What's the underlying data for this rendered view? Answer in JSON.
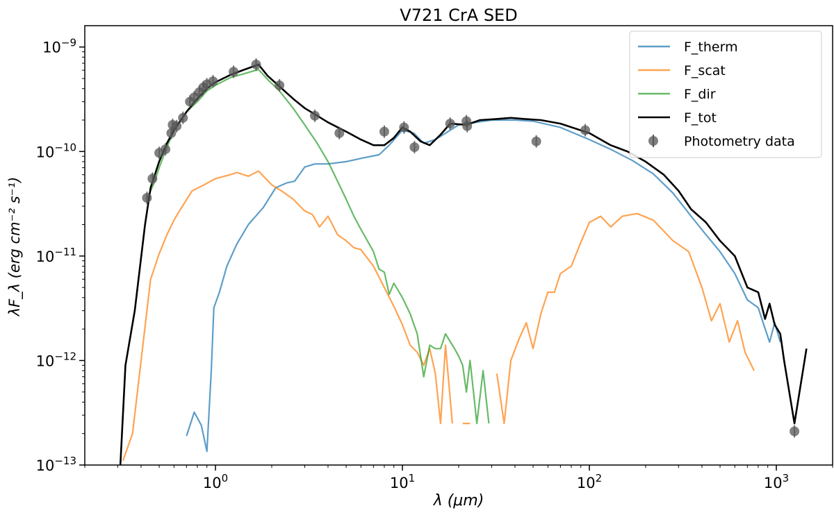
{
  "chart_data": {
    "type": "line",
    "title": "V721 CrA SED",
    "xlabel": "λ (μm)",
    "ylabel": "λF_λ (erg cm⁻² s⁻¹)",
    "xscale": "log",
    "yscale": "log",
    "xlim": [
      0.2,
      2000
    ],
    "ylim": [
      1e-13,
      1.6e-09
    ],
    "grid": false,
    "legend_position": "top-right",
    "x_ticks": [
      {
        "value": 1,
        "base": "10",
        "exp": "0"
      },
      {
        "value": 10,
        "base": "10",
        "exp": "1"
      },
      {
        "value": 100,
        "base": "10",
        "exp": "2"
      },
      {
        "value": 1000,
        "base": "10",
        "exp": "3"
      }
    ],
    "y_ticks": [
      {
        "value": 1e-13,
        "base": "10",
        "exp": "−13"
      },
      {
        "value": 1e-12,
        "base": "10",
        "exp": "−12"
      },
      {
        "value": 1e-11,
        "base": "10",
        "exp": "−11"
      },
      {
        "value": 1e-10,
        "base": "10",
        "exp": "−10"
      },
      {
        "value": 1e-09,
        "base": "10",
        "exp": "−9"
      }
    ],
    "series": [
      {
        "name": "F_therm",
        "color": "#1f77b4",
        "points": [
          [
            0.7,
            1.9e-13
          ],
          [
            0.77,
            3.2e-13
          ],
          [
            0.84,
            2.4e-13
          ],
          [
            0.9,
            1.35e-13
          ],
          [
            0.95,
            8e-13
          ],
          [
            0.98,
            3.2e-12
          ],
          [
            1.05,
            4.5e-12
          ],
          [
            1.15,
            8e-12
          ],
          [
            1.3,
            1.3e-11
          ],
          [
            1.5,
            2e-11
          ],
          [
            1.8,
            2.9e-11
          ],
          [
            2.1,
            4.5e-11
          ],
          [
            2.4,
            5e-11
          ],
          [
            2.65,
            5.2e-11
          ],
          [
            3.0,
            7.1e-11
          ],
          [
            3.4,
            7.6e-11
          ],
          [
            4.0,
            7.6e-11
          ],
          [
            5.0,
            8e-11
          ],
          [
            6.0,
            8.6e-11
          ],
          [
            7.5,
            9.3e-11
          ],
          [
            8.5,
            1.15e-10
          ],
          [
            10.0,
            1.6e-10
          ],
          [
            11.5,
            1.5e-10
          ],
          [
            13.0,
            1.2e-10
          ],
          [
            15.0,
            1.3e-10
          ],
          [
            20.0,
            1.8e-10
          ],
          [
            30.0,
            2e-10
          ],
          [
            40.0,
            2e-10
          ],
          [
            50.0,
            1.95e-10
          ],
          [
            70.0,
            1.7e-10
          ],
          [
            100.0,
            1.3e-10
          ],
          [
            130.0,
            1.05e-10
          ],
          [
            170.0,
            8.2e-11
          ],
          [
            220.0,
            6.1e-11
          ],
          [
            280.0,
            4e-11
          ],
          [
            350.0,
            2.4e-11
          ],
          [
            420.0,
            1.6e-11
          ],
          [
            500.0,
            1.1e-11
          ],
          [
            600.0,
            6.8e-12
          ],
          [
            700.0,
            3.8e-12
          ],
          [
            800.0,
            3.2e-12
          ],
          [
            850.0,
            2.3e-12
          ],
          [
            920.0,
            1.5e-12
          ],
          [
            980.0,
            2.3e-12
          ],
          [
            1050.0,
            1.5e-12
          ]
        ]
      },
      {
        "name": "F_scat",
        "color": "#ff7f0e",
        "segments": [
          [
            [
              0.32,
              1.1e-13
            ],
            [
              0.36,
              2e-13
            ],
            [
              0.4,
              1e-12
            ],
            [
              0.45,
              6e-12
            ],
            [
              0.5,
              1.05e-11
            ],
            [
              0.55,
              1.6e-11
            ],
            [
              0.6,
              2.2e-11
            ],
            [
              0.65,
              2.8e-11
            ],
            [
              0.75,
              4.2e-11
            ],
            [
              0.85,
              4.7e-11
            ],
            [
              1.0,
              5.5e-11
            ],
            [
              1.2,
              6e-11
            ],
            [
              1.3,
              6.3e-11
            ],
            [
              1.5,
              5.8e-11
            ],
            [
              1.7,
              6.5e-11
            ],
            [
              2.0,
              4.8e-11
            ],
            [
              2.3,
              4.1e-11
            ],
            [
              2.6,
              3.5e-11
            ],
            [
              3.0,
              2.7e-11
            ],
            [
              3.3,
              2.5e-11
            ],
            [
              3.6,
              1.9e-11
            ],
            [
              4.0,
              2.4e-11
            ],
            [
              4.5,
              1.6e-11
            ],
            [
              5.0,
              1.4e-11
            ],
            [
              5.5,
              1.2e-11
            ],
            [
              6.0,
              1.15e-11
            ],
            [
              7.0,
              8e-12
            ],
            [
              8.0,
              5e-12
            ],
            [
              9.0,
              3.3e-12
            ],
            [
              10.0,
              2.2e-12
            ],
            [
              11.0,
              1.4e-12
            ],
            [
              12.0,
              1.2e-12
            ],
            [
              13.0,
              9e-13
            ],
            [
              14.0,
              1.3e-12
            ],
            [
              15.0,
              7.5e-13
            ],
            [
              16.0,
              2.5e-13
            ],
            [
              17.0,
              1.4e-12
            ],
            [
              18.5,
              2.5e-13
            ]
          ],
          [
            [
              21.0,
              2.5e-13
            ],
            [
              23.0,
              2.5e-13
            ]
          ],
          [
            [
              32.0,
              7.5e-13
            ],
            [
              35.0,
              2.5e-13
            ],
            [
              38.0,
              1e-12
            ],
            [
              42.0,
              1.6e-12
            ],
            [
              46.0,
              2.3e-12
            ],
            [
              50.0,
              1.3e-12
            ],
            [
              55.0,
              2.8e-12
            ],
            [
              60.0,
              4.5e-12
            ],
            [
              65.0,
              4.5e-12
            ],
            [
              70.0,
              6.8e-12
            ],
            [
              80.0,
              8e-12
            ],
            [
              90.0,
              1.35e-11
            ],
            [
              100.0,
              2.1e-11
            ],
            [
              115.0,
              2.4e-11
            ],
            [
              130.0,
              1.9e-11
            ],
            [
              150.0,
              2.4e-11
            ],
            [
              180.0,
              2.55e-11
            ],
            [
              220.0,
              2.2e-11
            ],
            [
              280.0,
              1.4e-11
            ],
            [
              340.0,
              1.1e-11
            ],
            [
              400.0,
              5e-12
            ],
            [
              450.0,
              2.4e-12
            ],
            [
              500.0,
              3.5e-12
            ],
            [
              560.0,
              1.5e-12
            ],
            [
              620.0,
              2.4e-12
            ],
            [
              680.0,
              1.2e-12
            ],
            [
              760.0,
              8e-13
            ]
          ]
        ]
      },
      {
        "name": "F_dir",
        "color": "#2ca02c",
        "segments": [
          [
            [
              0.43,
              3.5e-11
            ],
            [
              0.47,
              5e-11
            ],
            [
              0.5,
              7e-11
            ],
            [
              0.55,
              1.1e-10
            ],
            [
              0.6,
              1.6e-10
            ],
            [
              0.7,
              2.4e-10
            ],
            [
              0.8,
              3e-10
            ],
            [
              0.9,
              3.8e-10
            ],
            [
              1.0,
              4.3e-10
            ],
            [
              1.2,
              5.1e-10
            ],
            [
              1.4,
              5.5e-10
            ],
            [
              1.7,
              6.1e-10
            ],
            [
              1.9,
              4.9e-10
            ],
            [
              2.2,
              3.8e-10
            ],
            [
              2.6,
              2.6e-10
            ],
            [
              3.0,
              1.8e-10
            ],
            [
              3.5,
              1.2e-10
            ],
            [
              4.0,
              8e-11
            ],
            [
              4.5,
              5.2e-11
            ],
            [
              5.0,
              3.5e-11
            ],
            [
              5.5,
              2.4e-11
            ],
            [
              6.0,
              1.8e-11
            ],
            [
              7.0,
              1.1e-11
            ],
            [
              7.5,
              7.5e-12
            ],
            [
              8.0,
              7e-12
            ],
            [
              8.5,
              4.3e-12
            ],
            [
              9.0,
              5.5e-12
            ],
            [
              10.0,
              4e-12
            ],
            [
              11.0,
              2.8e-12
            ],
            [
              12.0,
              1.8e-12
            ],
            [
              13.0,
              7e-13
            ],
            [
              14.0,
              1.4e-12
            ],
            [
              15.0,
              1.3e-12
            ],
            [
              16.0,
              1.3e-12
            ],
            [
              17.0,
              1.8e-12
            ],
            [
              19.0,
              1.3e-12
            ],
            [
              20.0,
              1.1e-12
            ],
            [
              21.0,
              9e-13
            ],
            [
              22.0,
              5e-13
            ],
            [
              23.0,
              1e-12
            ],
            [
              24.0,
              5e-13
            ],
            [
              25.0,
              2.5e-13
            ],
            [
              27.0,
              8e-13
            ],
            [
              29.0,
              2.5e-13
            ]
          ]
        ]
      },
      {
        "name": "F_tot",
        "color": "#000000",
        "points": [
          [
            0.31,
            1e-13
          ],
          [
            0.33,
            9e-13
          ],
          [
            0.37,
            3e-12
          ],
          [
            0.42,
            2e-11
          ],
          [
            0.45,
            4.5e-11
          ],
          [
            0.5,
            8e-11
          ],
          [
            0.55,
            1.2e-10
          ],
          [
            0.6,
            1.6e-10
          ],
          [
            0.7,
            2.4e-10
          ],
          [
            0.8,
            3.2e-10
          ],
          [
            0.9,
            4e-10
          ],
          [
            1.0,
            4.6e-10
          ],
          [
            1.2,
            5.4e-10
          ],
          [
            1.4,
            6e-10
          ],
          [
            1.7,
            6.8e-10
          ],
          [
            1.9,
            5.3e-10
          ],
          [
            2.2,
            4.2e-10
          ],
          [
            2.6,
            3.2e-10
          ],
          [
            3.0,
            2.6e-10
          ],
          [
            3.5,
            2.2e-10
          ],
          [
            4.0,
            1.9e-10
          ],
          [
            5.0,
            1.55e-10
          ],
          [
            6.0,
            1.3e-10
          ],
          [
            7.0,
            1.15e-10
          ],
          [
            8.0,
            1.15e-10
          ],
          [
            9.0,
            1.35e-10
          ],
          [
            10.0,
            1.7e-10
          ],
          [
            11.0,
            1.55e-10
          ],
          [
            12.5,
            1.25e-10
          ],
          [
            14.0,
            1.15e-10
          ],
          [
            16.0,
            1.45e-10
          ],
          [
            18.0,
            1.85e-10
          ],
          [
            22.0,
            1.8e-10
          ],
          [
            26.0,
            2e-10
          ],
          [
            32.0,
            2.05e-10
          ],
          [
            38.0,
            2.1e-10
          ],
          [
            45.0,
            2.05e-10
          ],
          [
            55.0,
            2e-10
          ],
          [
            70.0,
            1.85e-10
          ],
          [
            100.0,
            1.5e-10
          ],
          [
            130.0,
            1.15e-10
          ],
          [
            160.0,
            1e-10
          ],
          [
            200.0,
            8e-11
          ],
          [
            250.0,
            6e-11
          ],
          [
            300.0,
            4.2e-11
          ],
          [
            350.0,
            2.8e-11
          ],
          [
            420.0,
            2.1e-11
          ],
          [
            500.0,
            1.4e-11
          ],
          [
            600.0,
            1e-11
          ],
          [
            700.0,
            5e-12
          ],
          [
            800.0,
            4.5e-12
          ],
          [
            870.0,
            2.5e-12
          ],
          [
            920.0,
            3.5e-12
          ],
          [
            980.0,
            2.2e-12
          ],
          [
            1050.0,
            1.8e-12
          ],
          [
            1100.0,
            1e-12
          ],
          [
            1250.0,
            2.5e-13
          ],
          [
            1450.0,
            1.3e-12
          ]
        ]
      }
    ],
    "photometry": {
      "name": "Photometry data",
      "color": "#555555",
      "points": [
        [
          0.43,
          3.6e-11
        ],
        [
          0.46,
          5.5e-11
        ],
        [
          0.5,
          9.7e-11
        ],
        [
          0.54,
          1.05e-10
        ],
        [
          0.58,
          1.5e-10
        ],
        [
          0.59,
          1.8e-10
        ],
        [
          0.62,
          1.75e-10
        ],
        [
          0.67,
          2.1e-10
        ],
        [
          0.73,
          3e-10
        ],
        [
          0.77,
          3.3e-10
        ],
        [
          0.82,
          3.7e-10
        ],
        [
          0.86,
          4.1e-10
        ],
        [
          0.9,
          4.4e-10
        ],
        [
          0.97,
          4.7e-10
        ],
        [
          1.25,
          5.8e-10
        ],
        [
          1.65,
          6.8e-10
        ],
        [
          2.2,
          4.3e-10
        ],
        [
          3.4,
          2.2e-10
        ],
        [
          4.6,
          1.5e-10
        ],
        [
          8.0,
          1.55e-10
        ],
        [
          10.2,
          1.7e-10
        ],
        [
          11.6,
          1.1e-10
        ],
        [
          18.0,
          1.85e-10
        ],
        [
          22.0,
          1.95e-10
        ],
        [
          22.2,
          1.75e-10
        ],
        [
          52.0,
          1.25e-10
        ],
        [
          95.0,
          1.6e-10
        ],
        [
          1250.0,
          2.1e-13
        ]
      ]
    },
    "legend": [
      "F_therm",
      "F_scat",
      "F_dir",
      "F_tot",
      "Photometry data"
    ]
  }
}
